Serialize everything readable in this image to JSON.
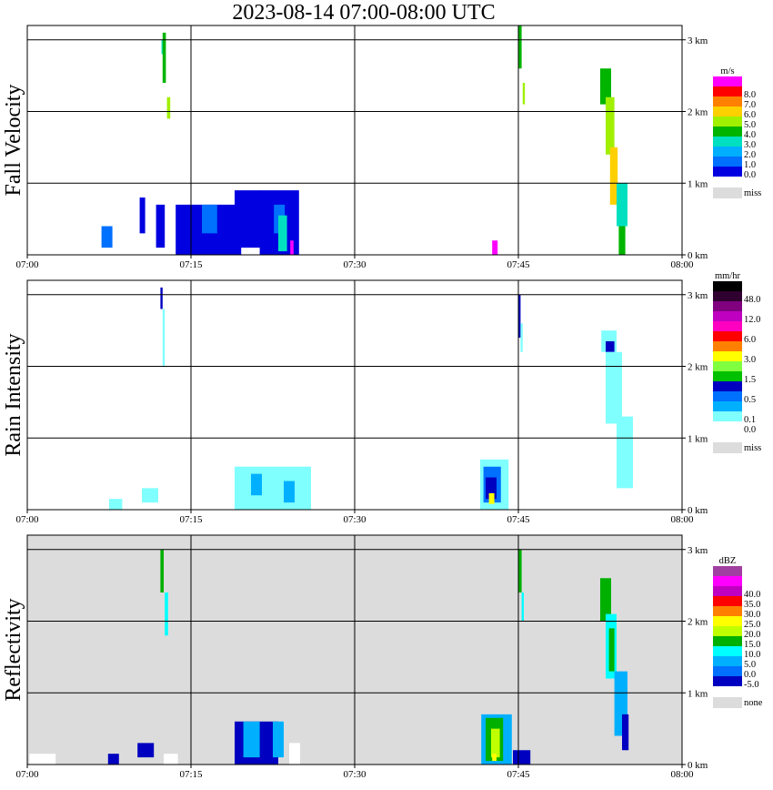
{
  "title": "2023-08-14   07:00-08:00 UTC",
  "chart_data": [
    {
      "type": "heatmap",
      "name": "Fall Velocity",
      "units": "m/s",
      "x_ticks": [
        "07:00",
        "07:15",
        "07:30",
        "07:45",
        "08:00"
      ],
      "xlim_minutes": [
        0,
        60
      ],
      "y_ticks": [
        "0 km",
        "1 km",
        "2 km",
        "3 km"
      ],
      "ylim_km": [
        0,
        3.2
      ],
      "grid": true,
      "missing_label": "miss",
      "missing_color": "#dcdcdc",
      "colorbar": [
        {
          "label": "0.0",
          "color": "#0000e0"
        },
        {
          "label": "1.0",
          "color": "#0070ff"
        },
        {
          "label": "2.0",
          "color": "#00b0ff"
        },
        {
          "label": "3.0",
          "color": "#00e0c0"
        },
        {
          "label": "4.0",
          "color": "#00b400"
        },
        {
          "label": "5.0",
          "color": "#a0f000"
        },
        {
          "label": "6.0",
          "color": "#ffd000"
        },
        {
          "label": "7.0",
          "color": "#ff8000"
        },
        {
          "label": "8.0",
          "color": "#ff0000"
        },
        {
          "label": "",
          "color": "#ff00ff"
        }
      ],
      "echoes": [
        {
          "t": 12.3,
          "z": 2.8,
          "w": 0.2,
          "h": 0.2,
          "color": "#00e0c0"
        },
        {
          "t": 12.4,
          "z": 2.4,
          "w": 0.3,
          "h": 0.7,
          "color": "#00b400"
        },
        {
          "t": 12.8,
          "z": 1.9,
          "w": 0.3,
          "h": 0.3,
          "color": "#a0f000"
        },
        {
          "t": 45.0,
          "z": 2.6,
          "w": 0.3,
          "h": 0.6,
          "color": "#00b400"
        },
        {
          "t": 45.4,
          "z": 2.1,
          "w": 0.2,
          "h": 0.3,
          "color": "#a0f000"
        },
        {
          "t": 52.5,
          "z": 2.1,
          "w": 1.0,
          "h": 0.5,
          "color": "#00b400"
        },
        {
          "t": 53.0,
          "z": 1.4,
          "w": 0.8,
          "h": 0.8,
          "color": "#a0f000"
        },
        {
          "t": 53.4,
          "z": 0.7,
          "w": 0.7,
          "h": 0.8,
          "color": "#ffd000"
        },
        {
          "t": 54.0,
          "z": 0.4,
          "w": 1.0,
          "h": 0.6,
          "color": "#00e0c0"
        },
        {
          "t": 54.2,
          "z": 0.0,
          "w": 0.6,
          "h": 0.4,
          "color": "#00b400"
        },
        {
          "t": 6.8,
          "z": 0.1,
          "w": 1.0,
          "h": 0.3,
          "color": "#0070ff"
        },
        {
          "t": 10.3,
          "z": 0.3,
          "w": 0.5,
          "h": 0.5,
          "color": "#0000e0"
        },
        {
          "t": 11.8,
          "z": 0.1,
          "w": 0.8,
          "h": 0.6,
          "color": "#0000e0"
        },
        {
          "t": 13.6,
          "z": 0.0,
          "w": 6.0,
          "h": 0.7,
          "color": "#0000e0"
        },
        {
          "t": 16.0,
          "z": 0.3,
          "w": 1.4,
          "h": 0.4,
          "color": "#0070ff"
        },
        {
          "t": 19.0,
          "z": 0.1,
          "w": 2.4,
          "h": 0.8,
          "color": "#0000e0"
        },
        {
          "t": 21.3,
          "z": 0.0,
          "w": 3.6,
          "h": 0.9,
          "color": "#0000e0"
        },
        {
          "t": 22.6,
          "z": 0.3,
          "w": 1.0,
          "h": 0.4,
          "color": "#0070ff"
        },
        {
          "t": 23.0,
          "z": 0.05,
          "w": 0.8,
          "h": 0.5,
          "color": "#00e0c0"
        },
        {
          "t": 24.1,
          "z": 0.0,
          "w": 0.3,
          "h": 0.2,
          "color": "#ff00ff"
        },
        {
          "t": 42.6,
          "z": 0.0,
          "w": 0.5,
          "h": 0.2,
          "color": "#ff00ff"
        }
      ]
    },
    {
      "type": "heatmap",
      "name": "Rain Intensity",
      "units": "mm/hr",
      "x_ticks": [
        "07:00",
        "07:15",
        "07:30",
        "07:45",
        "08:00"
      ],
      "xlim_minutes": [
        0,
        60
      ],
      "y_ticks": [
        "0 km",
        "1 km",
        "2 km",
        "3 km"
      ],
      "ylim_km": [
        0,
        3.2
      ],
      "grid": true,
      "missing_label": "miss",
      "missing_color": "#dcdcdc",
      "colorbar": [
        {
          "label": "0.0",
          "color": "#ffffff"
        },
        {
          "label": "0.1",
          "color": "#80ffff"
        },
        {
          "label": "",
          "color": "#00b0ff"
        },
        {
          "label": "0.5",
          "color": "#0070ff"
        },
        {
          "label": "",
          "color": "#0000c0"
        },
        {
          "label": "1.5",
          "color": "#00c000"
        },
        {
          "label": "",
          "color": "#80ff40"
        },
        {
          "label": "3.0",
          "color": "#ffff00"
        },
        {
          "label": "",
          "color": "#ff8000"
        },
        {
          "label": "6.0",
          "color": "#ff0000"
        },
        {
          "label": "",
          "color": "#ff00c0"
        },
        {
          "label": "12.0",
          "color": "#c000c0"
        },
        {
          "label": "",
          "color": "#800080"
        },
        {
          "label": "48.0",
          "color": "#300030"
        },
        {
          "label": "",
          "color": "#000000"
        }
      ],
      "echoes": [
        {
          "t": 12.2,
          "z": 2.8,
          "w": 0.2,
          "h": 0.3,
          "color": "#0000c0"
        },
        {
          "t": 12.4,
          "z": 2.0,
          "w": 0.2,
          "h": 0.8,
          "color": "#80ffff"
        },
        {
          "t": 45.0,
          "z": 2.4,
          "w": 0.2,
          "h": 0.6,
          "color": "#0000c0"
        },
        {
          "t": 45.2,
          "z": 2.2,
          "w": 0.2,
          "h": 0.4,
          "color": "#80ffff"
        },
        {
          "t": 52.6,
          "z": 2.2,
          "w": 1.4,
          "h": 0.3,
          "color": "#80ffff"
        },
        {
          "t": 53.0,
          "z": 2.2,
          "w": 0.8,
          "h": 0.15,
          "color": "#0000c0"
        },
        {
          "t": 53.0,
          "z": 1.2,
          "w": 1.5,
          "h": 1.0,
          "color": "#80ffff"
        },
        {
          "t": 54.0,
          "z": 0.3,
          "w": 1.5,
          "h": 1.0,
          "color": "#80ffff"
        },
        {
          "t": 19.0,
          "z": 0.0,
          "w": 7.0,
          "h": 0.6,
          "color": "#80ffff"
        },
        {
          "t": 20.5,
          "z": 0.2,
          "w": 1.0,
          "h": 0.3,
          "color": "#00b0ff"
        },
        {
          "t": 23.5,
          "z": 0.1,
          "w": 1.0,
          "h": 0.3,
          "color": "#00b0ff"
        },
        {
          "t": 41.5,
          "z": 0.0,
          "w": 2.6,
          "h": 0.7,
          "color": "#80ffff"
        },
        {
          "t": 41.8,
          "z": 0.1,
          "w": 1.6,
          "h": 0.5,
          "color": "#0070ff"
        },
        {
          "t": 42.0,
          "z": 0.15,
          "w": 1.0,
          "h": 0.3,
          "color": "#0000c0"
        },
        {
          "t": 42.3,
          "z": 0.08,
          "w": 0.5,
          "h": 0.15,
          "color": "#ffff00"
        },
        {
          "t": 7.5,
          "z": 0.0,
          "w": 1.2,
          "h": 0.15,
          "color": "#80ffff"
        },
        {
          "t": 10.5,
          "z": 0.1,
          "w": 1.5,
          "h": 0.2,
          "color": "#80ffff"
        }
      ]
    },
    {
      "type": "heatmap",
      "name": "Reflectivity",
      "units": "dBZ",
      "x_ticks": [
        "07:00",
        "07:15",
        "07:30",
        "07:45",
        "08:00"
      ],
      "xlim_minutes": [
        0,
        60
      ],
      "y_ticks": [
        "0 km",
        "1 km",
        "2 km",
        "3 km"
      ],
      "ylim_km": [
        0,
        3.2
      ],
      "grid": true,
      "background_color": "#dcdcdc",
      "missing_label": "none",
      "missing_color": "#dcdcdc",
      "colorbar": [
        {
          "label": "-5.0",
          "color": "#0000c0"
        },
        {
          "label": "0.0",
          "color": "#0070ff"
        },
        {
          "label": "5.0",
          "color": "#00b0ff"
        },
        {
          "label": "10.0",
          "color": "#00ffff"
        },
        {
          "label": "15.0",
          "color": "#00b000"
        },
        {
          "label": "20.0",
          "color": "#c0ff00"
        },
        {
          "label": "25.0",
          "color": "#ffff00"
        },
        {
          "label": "30.0",
          "color": "#ff8000"
        },
        {
          "label": "35.0",
          "color": "#ff0000"
        },
        {
          "label": "40.0",
          "color": "#c000c0"
        },
        {
          "label": "",
          "color": "#ff00ff"
        },
        {
          "label": "",
          "color": "#a040a0"
        }
      ],
      "echoes": [
        {
          "t": 12.2,
          "z": 2.4,
          "w": 0.3,
          "h": 0.6,
          "color": "#00b000"
        },
        {
          "t": 12.6,
          "z": 1.8,
          "w": 0.3,
          "h": 0.6,
          "color": "#00ffff"
        },
        {
          "t": 45.0,
          "z": 2.4,
          "w": 0.3,
          "h": 0.6,
          "color": "#00b000"
        },
        {
          "t": 45.3,
          "z": 2.0,
          "w": 0.2,
          "h": 0.4,
          "color": "#00ffff"
        },
        {
          "t": 52.5,
          "z": 2.0,
          "w": 1.0,
          "h": 0.6,
          "color": "#00b000"
        },
        {
          "t": 53.0,
          "z": 1.2,
          "w": 1.0,
          "h": 0.9,
          "color": "#00ffff"
        },
        {
          "t": 53.3,
          "z": 1.3,
          "w": 0.5,
          "h": 0.6,
          "color": "#00b000"
        },
        {
          "t": 53.8,
          "z": 0.4,
          "w": 1.2,
          "h": 0.9,
          "color": "#00b0ff"
        },
        {
          "t": 54.5,
          "z": 0.2,
          "w": 0.6,
          "h": 0.5,
          "color": "#0000c0"
        },
        {
          "t": 0.2,
          "z": 0.0,
          "w": 2.4,
          "h": 0.15,
          "color": "#ffffff"
        },
        {
          "t": 7.4,
          "z": 0.0,
          "w": 1.0,
          "h": 0.15,
          "color": "#0000c0"
        },
        {
          "t": 10.1,
          "z": 0.1,
          "w": 1.5,
          "h": 0.2,
          "color": "#0000c0"
        },
        {
          "t": 12.5,
          "z": 0.0,
          "w": 1.3,
          "h": 0.15,
          "color": "#ffffff"
        },
        {
          "t": 19.0,
          "z": 0.0,
          "w": 4.0,
          "h": 0.6,
          "color": "#0000c0"
        },
        {
          "t": 19.8,
          "z": 0.1,
          "w": 1.5,
          "h": 0.5,
          "color": "#00b0ff"
        },
        {
          "t": 22.5,
          "z": 0.1,
          "w": 1.0,
          "h": 0.5,
          "color": "#00b0ff"
        },
        {
          "t": 24.0,
          "z": 0.0,
          "w": 1.0,
          "h": 0.3,
          "color": "#ffffff"
        },
        {
          "t": 41.6,
          "z": 0.0,
          "w": 2.8,
          "h": 0.7,
          "color": "#00b0ff"
        },
        {
          "t": 42.0,
          "z": 0.05,
          "w": 1.6,
          "h": 0.6,
          "color": "#00b000"
        },
        {
          "t": 42.5,
          "z": 0.1,
          "w": 0.8,
          "h": 0.4,
          "color": "#c0ff00"
        },
        {
          "t": 42.6,
          "z": 0.05,
          "w": 0.4,
          "h": 0.1,
          "color": "#ffff00"
        },
        {
          "t": 44.5,
          "z": 0.0,
          "w": 1.6,
          "h": 0.2,
          "color": "#0000c0"
        }
      ]
    }
  ]
}
